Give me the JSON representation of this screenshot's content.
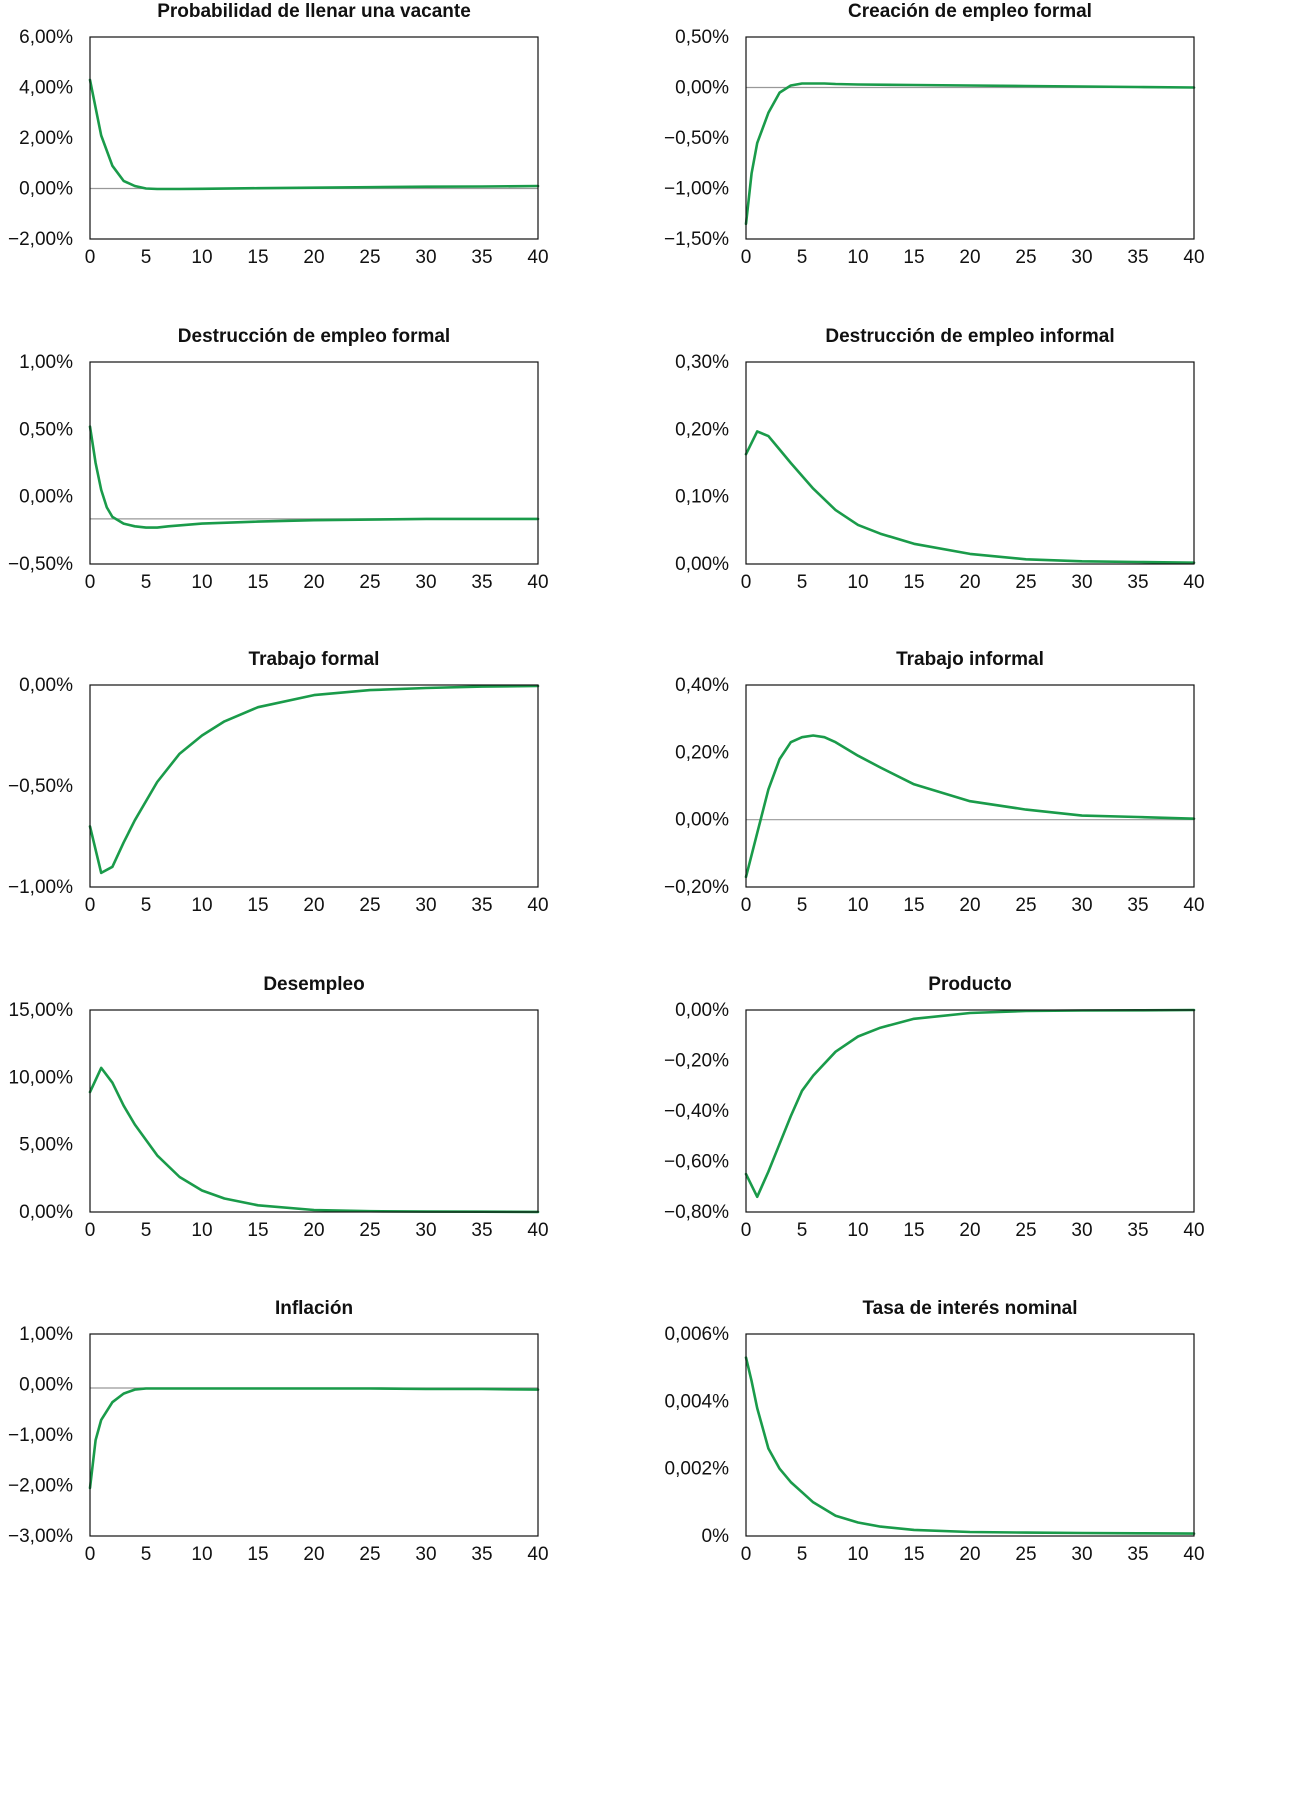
{
  "colors": {
    "series": "#1a9b4a",
    "baseline": "#999999",
    "frame": "#111111"
  },
  "chart_data": [
    {
      "type": "line",
      "title": "Probabilidad de llenar una vacante",
      "x": [
        0,
        1,
        2,
        3,
        4,
        5,
        6,
        8,
        10,
        15,
        20,
        25,
        30,
        35,
        40
      ],
      "series": [
        {
          "values": [
            4.3,
            2.1,
            0.9,
            0.3,
            0.1,
            0.0,
            -0.02,
            -0.02,
            -0.01,
            0.01,
            0.03,
            0.05,
            0.07,
            0.08,
            0.1
          ]
        }
      ],
      "xticks": [
        "0",
        "5",
        "10",
        "15",
        "20",
        "25",
        "30",
        "35",
        "40"
      ],
      "xlim": [
        0,
        40
      ],
      "yticks": [
        {
          "value": 6.0,
          "label": "6,00%"
        },
        {
          "value": 4.0,
          "label": "4,00%"
        },
        {
          "value": 2.0,
          "label": "2,00%"
        },
        {
          "value": 0.0,
          "label": "0,00%"
        },
        {
          "value": -2.0,
          "label": "−2,00%"
        }
      ],
      "ylim": [
        -2.0,
        6.0
      ],
      "baseline": 0.0
    },
    {
      "type": "line",
      "title": "Creación de empleo formal",
      "x": [
        0,
        0.5,
        1,
        2,
        3,
        4,
        5,
        6,
        7,
        8,
        10,
        15,
        20,
        25,
        30,
        35,
        40
      ],
      "series": [
        {
          "values": [
            -1.35,
            -0.85,
            -0.55,
            -0.25,
            -0.05,
            0.02,
            0.04,
            0.04,
            0.04,
            0.035,
            0.03,
            0.025,
            0.02,
            0.015,
            0.01,
            0.005,
            0.0
          ]
        }
      ],
      "xticks": [
        "0",
        "5",
        "10",
        "15",
        "20",
        "25",
        "30",
        "35",
        "40"
      ],
      "xlim": [
        0,
        40
      ],
      "yticks": [
        {
          "value": 0.5,
          "label": "0,50%"
        },
        {
          "value": 0.0,
          "label": "0,00%"
        },
        {
          "value": -0.5,
          "label": "−0,50%"
        },
        {
          "value": -1.0,
          "label": "−1,00%"
        },
        {
          "value": -1.5,
          "label": "−1,50%"
        }
      ],
      "ylim": [
        -1.5,
        0.5
      ],
      "baseline": 0.0
    },
    {
      "type": "line",
      "title": "Destrucción de empleo formal",
      "x": [
        0,
        0.5,
        1,
        1.5,
        2,
        3,
        4,
        5,
        6,
        7,
        10,
        15,
        20,
        25,
        30,
        35,
        40
      ],
      "series": [
        {
          "values": [
            0.52,
            0.25,
            0.05,
            -0.08,
            -0.15,
            -0.2,
            -0.22,
            -0.23,
            -0.23,
            -0.22,
            -0.2,
            -0.185,
            -0.175,
            -0.17,
            -0.165,
            -0.165,
            -0.165
          ]
        }
      ],
      "xticks": [
        "0",
        "5",
        "10",
        "15",
        "20",
        "25",
        "30",
        "35",
        "40"
      ],
      "xlim": [
        0,
        40
      ],
      "yticks": [
        {
          "value": 1.0,
          "label": "1,00%"
        },
        {
          "value": 0.5,
          "label": "0,50%"
        },
        {
          "value": 0.0,
          "label": "0,00%"
        },
        {
          "value": -0.5,
          "label": "−0,50%"
        }
      ],
      "ylim": [
        -0.5,
        1.0
      ],
      "baseline": -0.165
    },
    {
      "type": "line",
      "title": "Destrucción de empleo informal",
      "x": [
        0,
        1,
        2,
        3,
        4,
        6,
        8,
        10,
        12,
        15,
        20,
        25,
        30,
        35,
        40
      ],
      "series": [
        {
          "values": [
            0.163,
            0.197,
            0.19,
            0.17,
            0.15,
            0.112,
            0.08,
            0.058,
            0.045,
            0.03,
            0.015,
            0.007,
            0.004,
            0.003,
            0.002
          ]
        }
      ],
      "xticks": [
        "0",
        "5",
        "10",
        "15",
        "20",
        "25",
        "30",
        "35",
        "40"
      ],
      "xlim": [
        0,
        40
      ],
      "yticks": [
        {
          "value": 0.3,
          "label": "0,30%"
        },
        {
          "value": 0.2,
          "label": "0,20%"
        },
        {
          "value": 0.1,
          "label": "0,10%"
        },
        {
          "value": 0.0,
          "label": "0,00%"
        }
      ],
      "ylim": [
        0.0,
        0.3
      ],
      "baseline": null
    },
    {
      "type": "line",
      "title": "Trabajo formal",
      "x": [
        0,
        1,
        2,
        3,
        4,
        6,
        8,
        10,
        12,
        15,
        20,
        25,
        30,
        35,
        40
      ],
      "series": [
        {
          "values": [
            -0.7,
            -0.93,
            -0.9,
            -0.78,
            -0.67,
            -0.48,
            -0.34,
            -0.25,
            -0.18,
            -0.11,
            -0.05,
            -0.025,
            -0.015,
            -0.008,
            -0.005
          ]
        }
      ],
      "xticks": [
        "0",
        "5",
        "10",
        "15",
        "20",
        "25",
        "30",
        "35",
        "40"
      ],
      "xlim": [
        0,
        40
      ],
      "yticks": [
        {
          "value": 0.0,
          "label": "0,00%"
        },
        {
          "value": -0.5,
          "label": "−0,50%"
        },
        {
          "value": -1.0,
          "label": "−1,00%"
        }
      ],
      "ylim": [
        -1.0,
        0.0
      ],
      "baseline": null
    },
    {
      "type": "line",
      "title": "Trabajo informal",
      "x": [
        0,
        1,
        2,
        3,
        4,
        5,
        6,
        7,
        8,
        10,
        12,
        15,
        20,
        25,
        30,
        35,
        40
      ],
      "series": [
        {
          "values": [
            -0.17,
            -0.04,
            0.09,
            0.18,
            0.23,
            0.245,
            0.25,
            0.245,
            0.23,
            0.19,
            0.155,
            0.105,
            0.055,
            0.03,
            0.012,
            0.008,
            0.003
          ]
        }
      ],
      "xticks": [
        "0",
        "5",
        "10",
        "15",
        "20",
        "25",
        "30",
        "35",
        "40"
      ],
      "xlim": [
        0,
        40
      ],
      "yticks": [
        {
          "value": 0.4,
          "label": "0,40%"
        },
        {
          "value": 0.2,
          "label": "0,20%"
        },
        {
          "value": 0.0,
          "label": "0,00%"
        },
        {
          "value": -0.2,
          "label": "−0,20%"
        }
      ],
      "ylim": [
        -0.2,
        0.4
      ],
      "baseline": 0.0
    },
    {
      "type": "line",
      "title": "Desempleo",
      "x": [
        0,
        1,
        2,
        3,
        4,
        6,
        8,
        10,
        12,
        15,
        20,
        25,
        30,
        35,
        40
      ],
      "series": [
        {
          "values": [
            8.9,
            10.7,
            9.6,
            7.9,
            6.5,
            4.2,
            2.6,
            1.6,
            1.0,
            0.5,
            0.15,
            0.06,
            0.03,
            0.02,
            0.01
          ]
        }
      ],
      "xticks": [
        "0",
        "5",
        "10",
        "15",
        "20",
        "25",
        "30",
        "35",
        "40"
      ],
      "xlim": [
        0,
        40
      ],
      "yticks": [
        {
          "value": 15.0,
          "label": "15,00%"
        },
        {
          "value": 10.0,
          "label": "10,00%"
        },
        {
          "value": 5.0,
          "label": "5,00%"
        },
        {
          "value": 0.0,
          "label": "0,00%"
        }
      ],
      "ylim": [
        0.0,
        15.0
      ],
      "baseline": null
    },
    {
      "type": "line",
      "title": "Producto",
      "x": [
        0,
        1,
        2,
        3,
        4,
        5,
        6,
        8,
        10,
        12,
        15,
        20,
        25,
        30,
        35,
        40
      ],
      "series": [
        {
          "values": [
            -0.65,
            -0.74,
            -0.64,
            -0.53,
            -0.42,
            -0.32,
            -0.26,
            -0.165,
            -0.105,
            -0.07,
            -0.035,
            -0.012,
            -0.004,
            -0.002,
            -0.001,
            0.0
          ]
        }
      ],
      "xticks": [
        "0",
        "5",
        "10",
        "15",
        "20",
        "25",
        "30",
        "35",
        "40"
      ],
      "xlim": [
        0,
        40
      ],
      "yticks": [
        {
          "value": 0.0,
          "label": "0,00%"
        },
        {
          "value": -0.2,
          "label": "−0,20%"
        },
        {
          "value": -0.4,
          "label": "−0,40%"
        },
        {
          "value": -0.6,
          "label": "−0,60%"
        },
        {
          "value": -0.8,
          "label": "−0,80%"
        }
      ],
      "ylim": [
        -0.8,
        0.0
      ],
      "baseline": null
    },
    {
      "type": "line",
      "title": "Inflación",
      "x": [
        0,
        0.5,
        1,
        2,
        3,
        4,
        5,
        6,
        8,
        10,
        15,
        20,
        25,
        30,
        35,
        40
      ],
      "series": [
        {
          "values": [
            -2.05,
            -1.1,
            -0.7,
            -0.35,
            -0.18,
            -0.1,
            -0.08,
            -0.08,
            -0.08,
            -0.08,
            -0.08,
            -0.08,
            -0.08,
            -0.09,
            -0.09,
            -0.1
          ]
        }
      ],
      "xticks": [
        "0",
        "5",
        "10",
        "15",
        "20",
        "25",
        "30",
        "35",
        "40"
      ],
      "xlim": [
        0,
        40
      ],
      "yticks": [
        {
          "value": 1.0,
          "label": "1,00%"
        },
        {
          "value": 0.0,
          "label": "0,00%"
        },
        {
          "value": -1.0,
          "label": "−1,00%"
        },
        {
          "value": -2.0,
          "label": "−2,00%"
        },
        {
          "value": -3.0,
          "label": "−3,00%"
        }
      ],
      "ylim": [
        -3.0,
        1.0
      ],
      "baseline": -0.07
    },
    {
      "type": "line",
      "title": "Tasa de interés nominal",
      "x": [
        0,
        0.5,
        1,
        2,
        3,
        4,
        5,
        6,
        8,
        10,
        12,
        15,
        20,
        25,
        30,
        35,
        40
      ],
      "series": [
        {
          "values": [
            0.0053,
            0.0046,
            0.0038,
            0.0026,
            0.002,
            0.0016,
            0.0013,
            0.001,
            0.0006,
            0.0004,
            0.00028,
            0.00018,
            0.00012,
            0.0001,
            9e-05,
            8e-05,
            7e-05
          ]
        }
      ],
      "xticks": [
        "0",
        "5",
        "10",
        "15",
        "20",
        "25",
        "30",
        "35",
        "40"
      ],
      "xlim": [
        0,
        40
      ],
      "yticks": [
        {
          "value": 0.006,
          "label": "0,006%"
        },
        {
          "value": 0.004,
          "label": "0,004%"
        },
        {
          "value": 0.002,
          "label": "0,002%"
        },
        {
          "value": 0.0,
          "label": "0%"
        }
      ],
      "ylim": [
        0.0,
        0.006
      ],
      "baseline": null
    }
  ]
}
